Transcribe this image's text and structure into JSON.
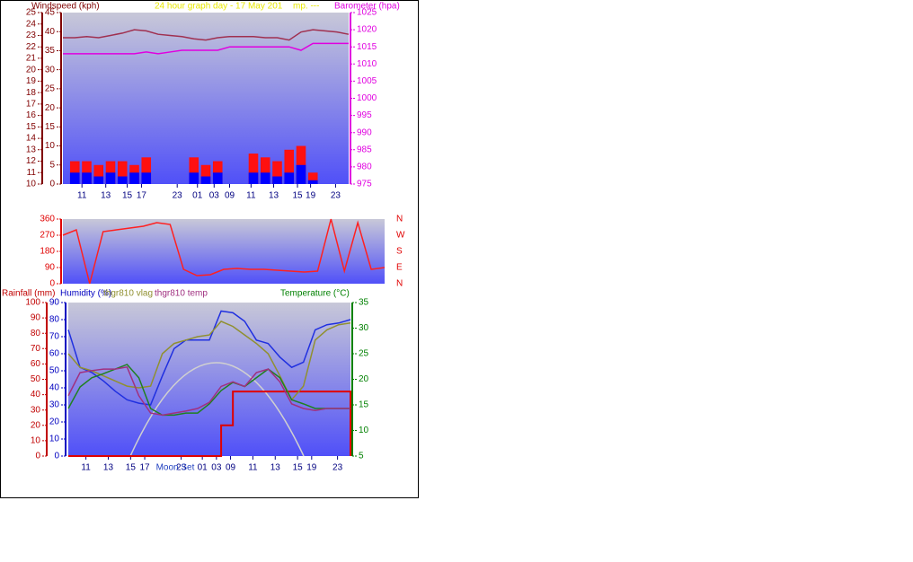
{
  "chart_data": [
    {
      "type": "bar",
      "title": "24 hour graph day - 17 May 201",
      "subtitle": "mp. ---",
      "title_color": "#e8e800",
      "x": [
        0,
        1,
        2,
        3,
        4,
        5,
        6,
        7,
        8,
        9,
        10,
        11,
        12,
        13,
        14,
        15,
        16,
        17,
        18,
        19,
        20,
        21,
        22,
        23,
        24
      ],
      "xlim": [
        0,
        24
      ],
      "xticks": [
        {
          "value": 1.6,
          "label": "11"
        },
        {
          "value": 3.6,
          "label": "13"
        },
        {
          "value": 5.4,
          "label": "15"
        },
        {
          "value": 6.6,
          "label": "17"
        },
        {
          "value": 9.6,
          "label": "23"
        },
        {
          "value": 11.3,
          "label": "01"
        },
        {
          "value": 12.7,
          "label": "03"
        },
        {
          "value": 14.0,
          "label": "09"
        },
        {
          "value": 15.8,
          "label": "11"
        },
        {
          "value": 17.7,
          "label": "13"
        },
        {
          "value": 19.7,
          "label": "15"
        },
        {
          "value": 20.8,
          "label": "19"
        },
        {
          "value": 22.9,
          "label": "23"
        }
      ],
      "axes": [
        {
          "lim": [
            10,
            25
          ],
          "ticks": [
            10,
            11,
            12,
            13,
            14,
            15,
            16,
            17,
            18,
            19,
            20,
            21,
            22,
            23,
            24,
            25
          ],
          "color": "#800000"
        },
        {
          "title": "Windspeed (kph)",
          "lim": [
            0,
            45
          ],
          "ticks": [
            0,
            5,
            10,
            15,
            20,
            25,
            30,
            35,
            40,
            45
          ],
          "color": "#800000"
        },
        {
          "title": "Barometer (hpa)",
          "lim": [
            975,
            1025
          ],
          "ticks": [
            975,
            980,
            985,
            990,
            995,
            1000,
            1005,
            1010,
            1015,
            1020,
            1025
          ],
          "color": "#e000e0"
        }
      ],
      "series": [
        {
          "type": "bar",
          "axis": 1,
          "color": "#ff1010",
          "values": [
            0,
            6,
            6,
            5,
            6,
            6,
            5,
            7,
            0,
            0,
            0,
            7,
            5,
            6,
            0,
            0,
            8,
            7,
            6,
            9,
            10,
            3,
            0,
            0,
            0
          ]
        },
        {
          "type": "bar",
          "axis": 1,
          "color": "#0000ff",
          "values": [
            0,
            3,
            3,
            2,
            3,
            2,
            3,
            3,
            0,
            0,
            0,
            3,
            2,
            3,
            0,
            0,
            3,
            3,
            2,
            3,
            5,
            1,
            0,
            0,
            0
          ]
        },
        {
          "type": "line",
          "axis": 2,
          "color": "#e000e0",
          "values": [
            1013,
            1013,
            1013,
            1013,
            1013,
            1013,
            1013,
            1013.5,
            1013,
            1013.5,
            1014,
            1014,
            1014,
            1014,
            1015,
            1015,
            1015,
            1015,
            1015,
            1015,
            1014,
            1016,
            1016,
            1016,
            1016
          ]
        },
        {
          "type": "line",
          "axis": 0,
          "color": "#a03050",
          "values": [
            22.8,
            22.8,
            22.9,
            22.8,
            23.0,
            23.2,
            23.5,
            23.4,
            23.1,
            23.0,
            22.9,
            22.7,
            22.6,
            22.8,
            22.9,
            22.9,
            22.9,
            22.8,
            22.8,
            22.6,
            23.3,
            23.5,
            23.4,
            23.3,
            23.1
          ]
        }
      ]
    },
    {
      "type": "line",
      "x": [
        0,
        1,
        2,
        3,
        4,
        5,
        6,
        7,
        8,
        9,
        10,
        11,
        12,
        13,
        14,
        15,
        16,
        17,
        18,
        19,
        20,
        21,
        22,
        23,
        24
      ],
      "xlim": [
        0,
        24
      ],
      "axes": [
        {
          "lim": [
            0,
            360
          ],
          "ticks": [
            0,
            90,
            180,
            270,
            360
          ],
          "color": "#e00000"
        },
        {
          "lim": [
            0,
            360
          ],
          "ticks": [
            {
              "value": 360,
              "label": "N"
            },
            {
              "value": 270,
              "label": "W"
            },
            {
              "value": 180,
              "label": "S"
            },
            {
              "value": 90,
              "label": "E"
            },
            {
              "value": 0,
              "label": "N"
            }
          ],
          "color": "#e00000"
        }
      ],
      "series": [
        {
          "type": "line",
          "axis": 0,
          "color": "#ff2020",
          "values": [
            270,
            300,
            0,
            290,
            300,
            310,
            320,
            340,
            330,
            80,
            45,
            50,
            80,
            85,
            80,
            80,
            75,
            70,
            65,
            70,
            360,
            70,
            340,
            80,
            90
          ]
        }
      ]
    },
    {
      "type": "line",
      "annotation": "Moon Set",
      "x": [
        0,
        1,
        2,
        3,
        4,
        5,
        6,
        7,
        8,
        9,
        10,
        11,
        12,
        13,
        14,
        15,
        16,
        17,
        18,
        19,
        20,
        21,
        22,
        23,
        24
      ],
      "xlim": [
        0,
        24
      ],
      "xticks": [
        {
          "value": 1.5,
          "label": "11"
        },
        {
          "value": 3.4,
          "label": "13"
        },
        {
          "value": 5.3,
          "label": "15"
        },
        {
          "value": 6.5,
          "label": "17"
        },
        {
          "value": 9.6,
          "label": "23"
        },
        {
          "value": 11.4,
          "label": "01"
        },
        {
          "value": 12.6,
          "label": "03"
        },
        {
          "value": 13.8,
          "label": "09"
        },
        {
          "value": 15.7,
          "label": "11"
        },
        {
          "value": 17.6,
          "label": "13"
        },
        {
          "value": 19.5,
          "label": "15"
        },
        {
          "value": 20.7,
          "label": "19"
        },
        {
          "value": 22.9,
          "label": "23"
        }
      ],
      "axes": [
        {
          "title": "Rainfall (mm)",
          "lim": [
            0,
            100
          ],
          "ticks": [
            0,
            10,
            20,
            30,
            40,
            50,
            60,
            70,
            80,
            90,
            100
          ],
          "color": "#c00000"
        },
        {
          "title": "Humidity (%)",
          "lim": [
            0,
            90
          ],
          "ticks": [
            0,
            10,
            20,
            30,
            40,
            50,
            60,
            70,
            80,
            90
          ],
          "color": "#0000c0"
        },
        {
          "title": "Temperature (°C)",
          "lim": [
            5,
            35
          ],
          "ticks": [
            5,
            10,
            15,
            20,
            25,
            30,
            35
          ],
          "color": "#008000"
        }
      ],
      "series": [
        {
          "type": "step",
          "axis": 0,
          "color": "#e00000",
          "values": [
            0,
            0,
            0,
            0,
            0,
            0,
            0,
            0,
            0,
            0,
            0,
            0,
            0,
            20,
            42,
            42,
            42,
            42,
            42,
            42,
            42,
            42,
            42,
            42,
            0
          ]
        },
        {
          "type": "line",
          "axis": 1,
          "color": "#2030e0",
          "values": [
            74,
            52,
            49,
            44,
            38,
            33,
            31,
            30,
            47,
            63,
            68,
            68,
            68,
            85,
            84,
            79,
            68,
            66,
            58,
            52,
            55,
            74,
            77,
            78,
            80
          ]
        },
        {
          "type": "line",
          "axis": 1,
          "name": "thgr810 vlag",
          "color": "#909030",
          "values": [
            60,
            52,
            50,
            47,
            44,
            41,
            40,
            41,
            60,
            66,
            68,
            70,
            71,
            79,
            76,
            71,
            66,
            60,
            47,
            33,
            41,
            68,
            74,
            77,
            78
          ]
        },
        {
          "type": "line",
          "axis": 2,
          "color": "#208020",
          "values": [
            14.3,
            18.5,
            20.3,
            21.1,
            22,
            22.9,
            20.3,
            14.3,
            13,
            13,
            13.4,
            13.4,
            15.2,
            17.8,
            19.4,
            18.6,
            20.3,
            22,
            20.3,
            16,
            15.2,
            14.3,
            14.3,
            14.3,
            14.3
          ]
        },
        {
          "type": "line",
          "axis": 2,
          "name": "thgr810 temp",
          "color": "#a03080",
          "values": [
            16.8,
            21.3,
            21.7,
            22,
            22,
            22.4,
            16.8,
            13.4,
            13,
            13.4,
            13.8,
            14.3,
            15.5,
            18.6,
            19.5,
            18.6,
            21.3,
            22,
            19.5,
            15.2,
            14.3,
            13.9,
            14.3,
            14.3,
            14.3
          ]
        }
      ]
    }
  ]
}
